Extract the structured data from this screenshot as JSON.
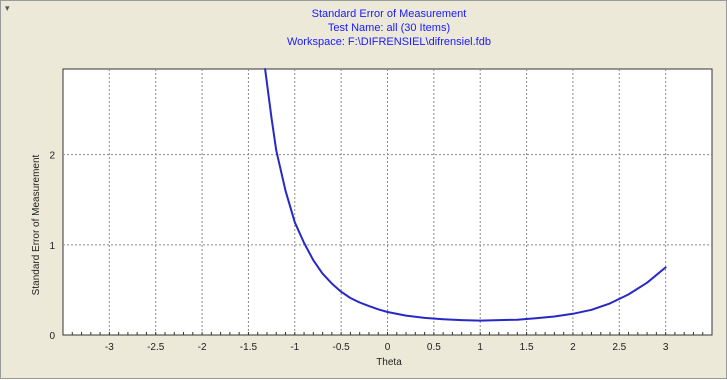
{
  "window": {
    "system_icon": "window-menu-icon"
  },
  "chart_data": {
    "type": "line",
    "title": [
      "Standard Error of Measurement",
      "Test Name: all (30 Items)",
      "Workspace: F:\\DIFRENSIEL\\difrensiel.fdb"
    ],
    "xlabel": "Theta",
    "ylabel": "Standard Error of Measurement",
    "xlim": [
      -3.5,
      3.5
    ],
    "ylim": [
      0,
      2.95
    ],
    "xticks": [
      -3,
      -2.5,
      -2,
      -1.5,
      -1,
      -0.5,
      0,
      0.5,
      1,
      1.5,
      2,
      2.5,
      3
    ],
    "xtick_labels": [
      "-3",
      "-2.5",
      "-2",
      "-1.5",
      "-1",
      "-0.5",
      "0",
      "0.5",
      "1",
      "1.5",
      "2",
      "2.5",
      "3"
    ],
    "yticks": [
      0,
      1,
      2
    ],
    "ytick_labels": [
      "0",
      "1",
      "2"
    ],
    "grid": true,
    "series": [
      {
        "color": "#2828c8",
        "x": [
          -1.32,
          -1.25,
          -1.2,
          -1.1,
          -1.0,
          -0.9,
          -0.8,
          -0.7,
          -0.6,
          -0.5,
          -0.4,
          -0.3,
          -0.2,
          -0.1,
          0.0,
          0.2,
          0.4,
          0.6,
          0.8,
          1.0,
          1.2,
          1.4,
          1.6,
          1.8,
          2.0,
          2.2,
          2.4,
          2.6,
          2.8,
          3.0
        ],
        "y": [
          2.95,
          2.4,
          2.05,
          1.6,
          1.25,
          1.02,
          0.83,
          0.68,
          0.57,
          0.48,
          0.41,
          0.36,
          0.32,
          0.285,
          0.255,
          0.215,
          0.19,
          0.175,
          0.165,
          0.16,
          0.165,
          0.17,
          0.185,
          0.205,
          0.235,
          0.28,
          0.35,
          0.45,
          0.58,
          0.75
        ]
      }
    ]
  }
}
